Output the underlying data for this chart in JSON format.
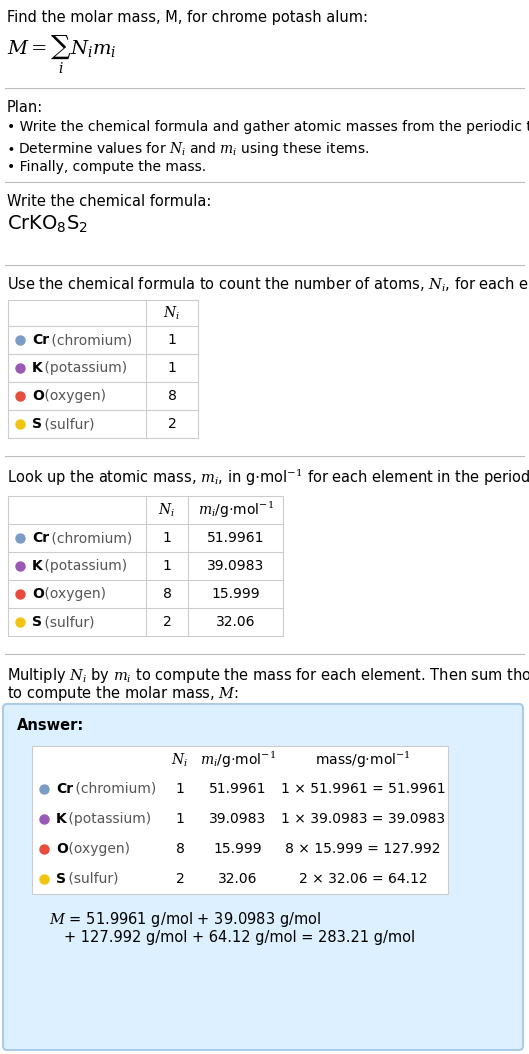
{
  "title_text": "Find the molar mass, M, for chrome potash alum:",
  "bg_color": "#ffffff",
  "text_color": "#000000",
  "plan_header": "Plan:",
  "plan_bullet1": "• Write the chemical formula and gather atomic masses from the periodic table.",
  "plan_bullet2_pre": "• Determine values for ",
  "plan_bullet2_post": " using these items.",
  "plan_bullet3": "• Finally, compute the mass.",
  "formula_section_header": "Write the chemical formula:",
  "count_section_header": "Use the chemical formula to count the number of atoms, $N_i$, for each element:",
  "lookup_section_header": "Look up the atomic mass, $m_i$, in g$\\cdot$mol$^{-1}$ for each element in the periodic table:",
  "compute_section_header_1": "Multiply $N_i$ by $m_i$ to compute the mass for each element. Then sum those values",
  "compute_section_header_2": "to compute the molar mass, $M$:",
  "elements": [
    "Cr (chromium)",
    "K (potassium)",
    "O (oxygen)",
    "S (sulfur)"
  ],
  "element_colors": [
    "#7b9cc4",
    "#9b59b6",
    "#e74c3c",
    "#f1c40f"
  ],
  "element_symbols": [
    "Cr",
    "K",
    "O",
    "S"
  ],
  "element_names": [
    " (chromium)",
    " (potassium)",
    " (oxygen)",
    " (sulfur)"
  ],
  "Ni": [
    1,
    1,
    8,
    2
  ],
  "mi_str": [
    "51.9961",
    "39.0983",
    "15.999",
    "32.06"
  ],
  "mass_str": [
    "1 × 51.9961 = 51.9961",
    "1 × 39.0983 = 39.0983",
    "8 × 15.999 = 127.992",
    "2 × 32.06 = 64.12"
  ],
  "answer_bg": "#ddf0ff",
  "answer_border": "#aacce8",
  "table_border": "#cccccc",
  "divider_color": "#bbbbbb"
}
